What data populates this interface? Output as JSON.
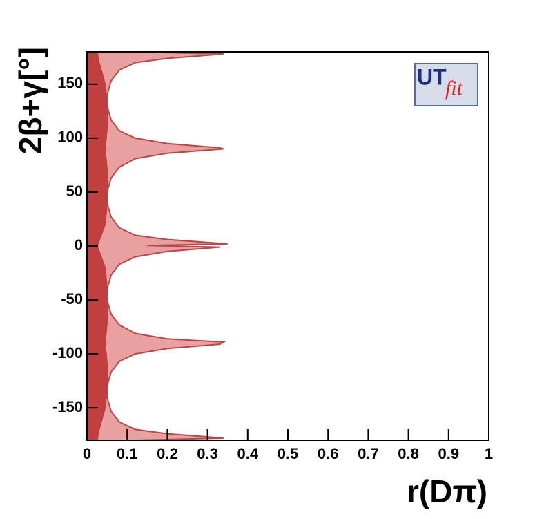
{
  "chart_data": {
    "type": "contour",
    "xlabel": "r(Dπ)",
    "ylabel": "2β+γ[°]",
    "annotations": [
      "UT",
      "fit"
    ],
    "xlim": [
      0,
      1
    ],
    "ylim": [
      -180,
      180
    ],
    "xticks": [
      0,
      0.1,
      0.2,
      0.3,
      0.4,
      0.5,
      0.6,
      0.7,
      0.8,
      0.9,
      1
    ],
    "yticks": [
      -150,
      -100,
      -50,
      0,
      50,
      100,
      150
    ],
    "regions": [
      {
        "color": "#e8a0a0",
        "edge": "#b84848",
        "x": [
          0,
          0.12,
          0.34,
          0.2,
          0.12,
          0.08,
          0.06,
          0.05,
          0.05,
          0.06,
          0.08,
          0.12,
          0.2,
          0.33,
          0.34,
          0.2,
          0.12,
          0.08,
          0.06,
          0.05,
          0.05,
          0.06,
          0.08,
          0.12,
          0.2,
          0.35,
          0.15,
          0.33,
          0.2,
          0.12,
          0.08,
          0.06,
          0.05,
          0.05,
          0.06,
          0.08,
          0.12,
          0.2,
          0.34,
          0.33,
          0.2,
          0.12,
          0.08,
          0.06,
          0.05,
          0.05,
          0.06,
          0.08,
          0.12,
          0.2,
          0.34,
          0.12,
          0
        ],
        "y": [
          180,
          180,
          178,
          174,
          170,
          163,
          153,
          140,
          130,
          117,
          107,
          100,
          95,
          91,
          90,
          86,
          81,
          73,
          63,
          50,
          40,
          27,
          17,
          10,
          6,
          2,
          0.5,
          -1,
          -5,
          -10,
          -17,
          -27,
          -40,
          -50,
          -63,
          -73,
          -81,
          -86,
          -89,
          -91,
          -95,
          -100,
          -107,
          -117,
          -130,
          -140,
          -153,
          -163,
          -170,
          -174,
          -178,
          -180,
          -180
        ]
      },
      {
        "color": "#c04040",
        "edge": "#c04040",
        "x": [
          0,
          0.025,
          0.03,
          0.045,
          0.05,
          0.05,
          0.045,
          0.05,
          0.05,
          0.045,
          0.03,
          0.025,
          0.03,
          0.045,
          0.05,
          0.05,
          0.045,
          0.05,
          0.05,
          0.045,
          0.03,
          0.025,
          0
        ],
        "y": [
          180,
          180,
          170,
          150,
          130,
          110,
          90,
          70,
          40,
          20,
          5,
          0,
          -5,
          -20,
          -40,
          -70,
          -90,
          -110,
          -130,
          -150,
          -170,
          -180,
          -180
        ]
      }
    ]
  }
}
